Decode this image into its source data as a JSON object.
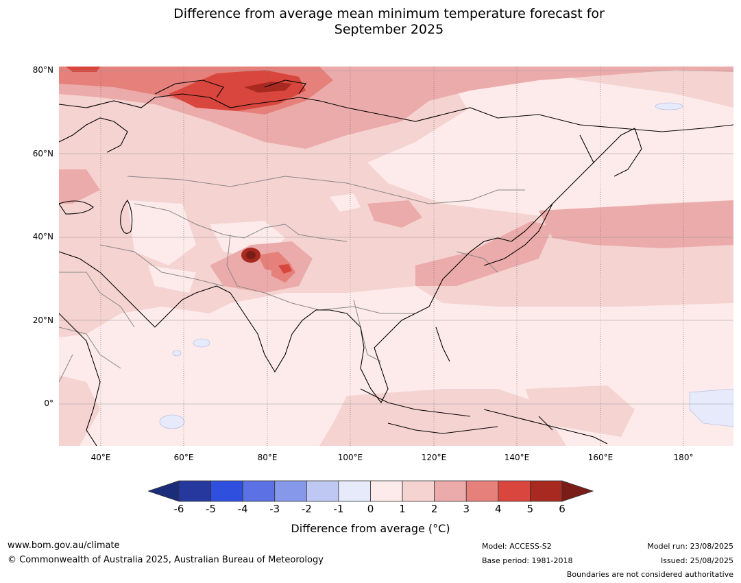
{
  "title_line1": "Difference from average mean minimum temperature forecast for",
  "title_line2": "September 2025",
  "lat_labels": [
    "80°N",
    "60°N",
    "40°N",
    "20°N",
    "0°"
  ],
  "lon_labels": [
    "40°E",
    "60°E",
    "80°E",
    "100°E",
    "120°E",
    "140°E",
    "160°E",
    "180°"
  ],
  "colorbar": {
    "ticks": [
      "-6",
      "-5",
      "-4",
      "-3",
      "-2",
      "-1",
      "0",
      "1",
      "2",
      "3",
      "4",
      "5",
      "6"
    ],
    "colors": [
      "#26389e",
      "#2f4fde",
      "#5c72e4",
      "#8698ea",
      "#bec8f3",
      "#e6eafb",
      "#fcebea",
      "#f5d3d1",
      "#ebabaa",
      "#e5807b",
      "#d8463d",
      "#a8291f"
    ],
    "under_color": "#1b2c7a",
    "over_color": "#7a1c17",
    "label": "Difference from average ($^\\circ$C)"
  },
  "colorbar_label_text": "Difference from average (°C)",
  "footer": {
    "website": "www.bom.gov.au/climate",
    "copyright": "© Commonwealth of Australia 2025, Australian Bureau of Meteorology",
    "model": "Model: ACCESS-S2",
    "base_period": "Base period: 1981-2018",
    "model_run": "Model run: 23/08/2025",
    "issued": "Issued: 25/08/2025",
    "disclaimer": "Boundaries are not considered authoritative"
  },
  "map": {
    "projection": "PlateCarree",
    "lon_range": [
      30,
      192
    ],
    "lat_range": [
      -10,
      81
    ],
    "background_color": "#fcebea"
  }
}
